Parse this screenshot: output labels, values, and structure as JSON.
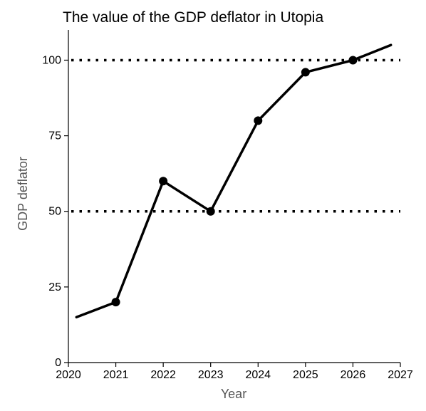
{
  "chart_data": {
    "type": "line",
    "title": "The value of the GDP deflator in Utopia",
    "xlabel": "Year",
    "ylabel": "GDP deflator",
    "xlim": [
      2020,
      2027
    ],
    "ylim": [
      0,
      110
    ],
    "x_ticks": [
      "2020",
      "2021",
      "2022",
      "2023",
      "2024",
      "2025",
      "2026",
      "2027"
    ],
    "y_ticks": [
      "0",
      "25",
      "50",
      "75",
      "100"
    ],
    "reference_lines": [
      50,
      100
    ],
    "series": [
      {
        "points": [
          {
            "x": 2020.17,
            "y": 15
          },
          {
            "x": 2021,
            "y": 20,
            "marker": true
          },
          {
            "x": 2022,
            "y": 60,
            "marker": true
          },
          {
            "x": 2023,
            "y": 50,
            "marker": true
          },
          {
            "x": 2024,
            "y": 80,
            "marker": true
          },
          {
            "x": 2025,
            "y": 96,
            "marker": true
          },
          {
            "x": 2026,
            "y": 100,
            "marker": true
          },
          {
            "x": 2026.8,
            "y": 105
          }
        ]
      }
    ],
    "colors": {
      "line": "#000000",
      "axis": "#000000",
      "reference": "#000000"
    },
    "grid": false
  }
}
